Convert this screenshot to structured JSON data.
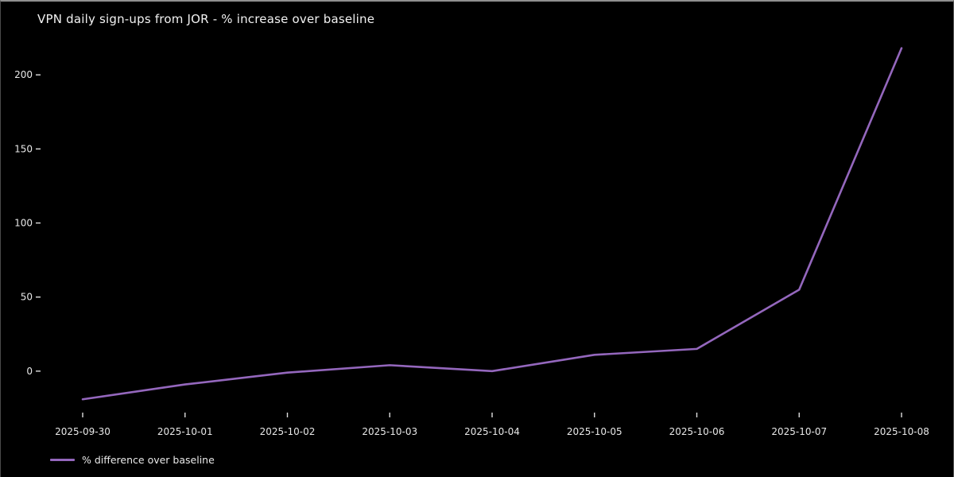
{
  "window": {
    "background": "#000000",
    "top_border_color": "#8f8f8f",
    "text_color": "#f2f2f2"
  },
  "chart_data": {
    "type": "line",
    "title": "VPN daily sign-ups from JOR - % increase over baseline",
    "x": [
      "2025-09-30",
      "2025-10-01",
      "2025-10-02",
      "2025-10-03",
      "2025-10-04",
      "2025-10-05",
      "2025-10-06",
      "2025-10-07",
      "2025-10-08"
    ],
    "series": [
      {
        "name": "% difference over baseline",
        "values": [
          -19,
          -9,
          -1,
          4,
          0,
          11,
          15,
          55,
          218
        ],
        "color": "#9467bd"
      }
    ],
    "y_ticks": [
      0,
      50,
      100,
      150,
      200
    ],
    "ylim": [
      -28,
      228
    ],
    "xlabel": "",
    "ylabel": "",
    "grid": false,
    "legend_position": "lower-left",
    "background": "#000000",
    "text_color": "#dedede"
  }
}
